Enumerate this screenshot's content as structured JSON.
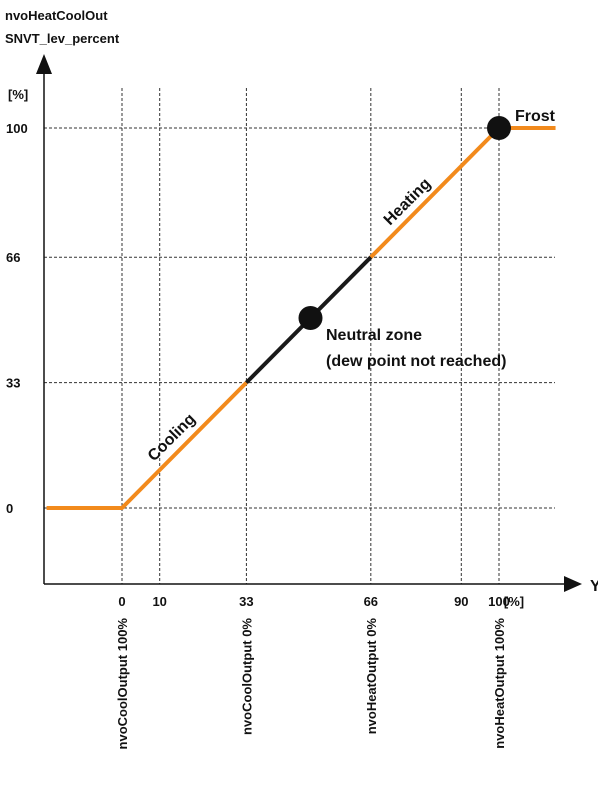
{
  "chart_data": {
    "type": "line",
    "y_title_line1": "nvoHeatCoolOut",
    "y_title_line2": "SNVT_lev_percent",
    "y_unit": "[%]",
    "x_title": "Y",
    "x_unit": "[%]",
    "xlim": [
      -20,
      115
    ],
    "ylim": [
      -20,
      115
    ],
    "x_ticks": [
      0,
      10,
      33,
      66,
      90,
      100
    ],
    "y_ticks": [
      0,
      33,
      66,
      100
    ],
    "x_tick_labels": [
      "0",
      "10",
      "33",
      "66",
      "90",
      "100"
    ],
    "y_tick_labels": [
      "0",
      "33",
      "66",
      "100"
    ],
    "grid": true,
    "series": [
      {
        "name": "Cooling",
        "color": "#f28a1c",
        "x": [
          -20,
          0,
          33
        ],
        "y": [
          0,
          0,
          33
        ]
      },
      {
        "name": "Neutral zone",
        "color": "#1a1a1a",
        "x": [
          33,
          66
        ],
        "y": [
          33,
          66
        ]
      },
      {
        "name": "Heating",
        "color": "#f28a1c",
        "x": [
          66,
          100,
          115
        ],
        "y": [
          66,
          100,
          100
        ]
      }
    ],
    "markers": [
      {
        "x": 50,
        "y": 50,
        "color": "#111111"
      },
      {
        "x": 100,
        "y": 100,
        "color": "#111111"
      }
    ],
    "annotations": {
      "cooling": "Cooling",
      "heating": "Heating",
      "frost": "Frost",
      "neutral_line1": "Neutral zone",
      "neutral_line2": "(dew point not reached)"
    },
    "x_annotations": [
      {
        "x": 0,
        "text": "nvoCoolOutput 100%"
      },
      {
        "x": 33,
        "text": "nvoCoolOutput 0%"
      },
      {
        "x": 66,
        "text": "nvoHeatOutput 0%"
      },
      {
        "x": 100,
        "text": "nvoHeatOutput 100%"
      }
    ]
  }
}
